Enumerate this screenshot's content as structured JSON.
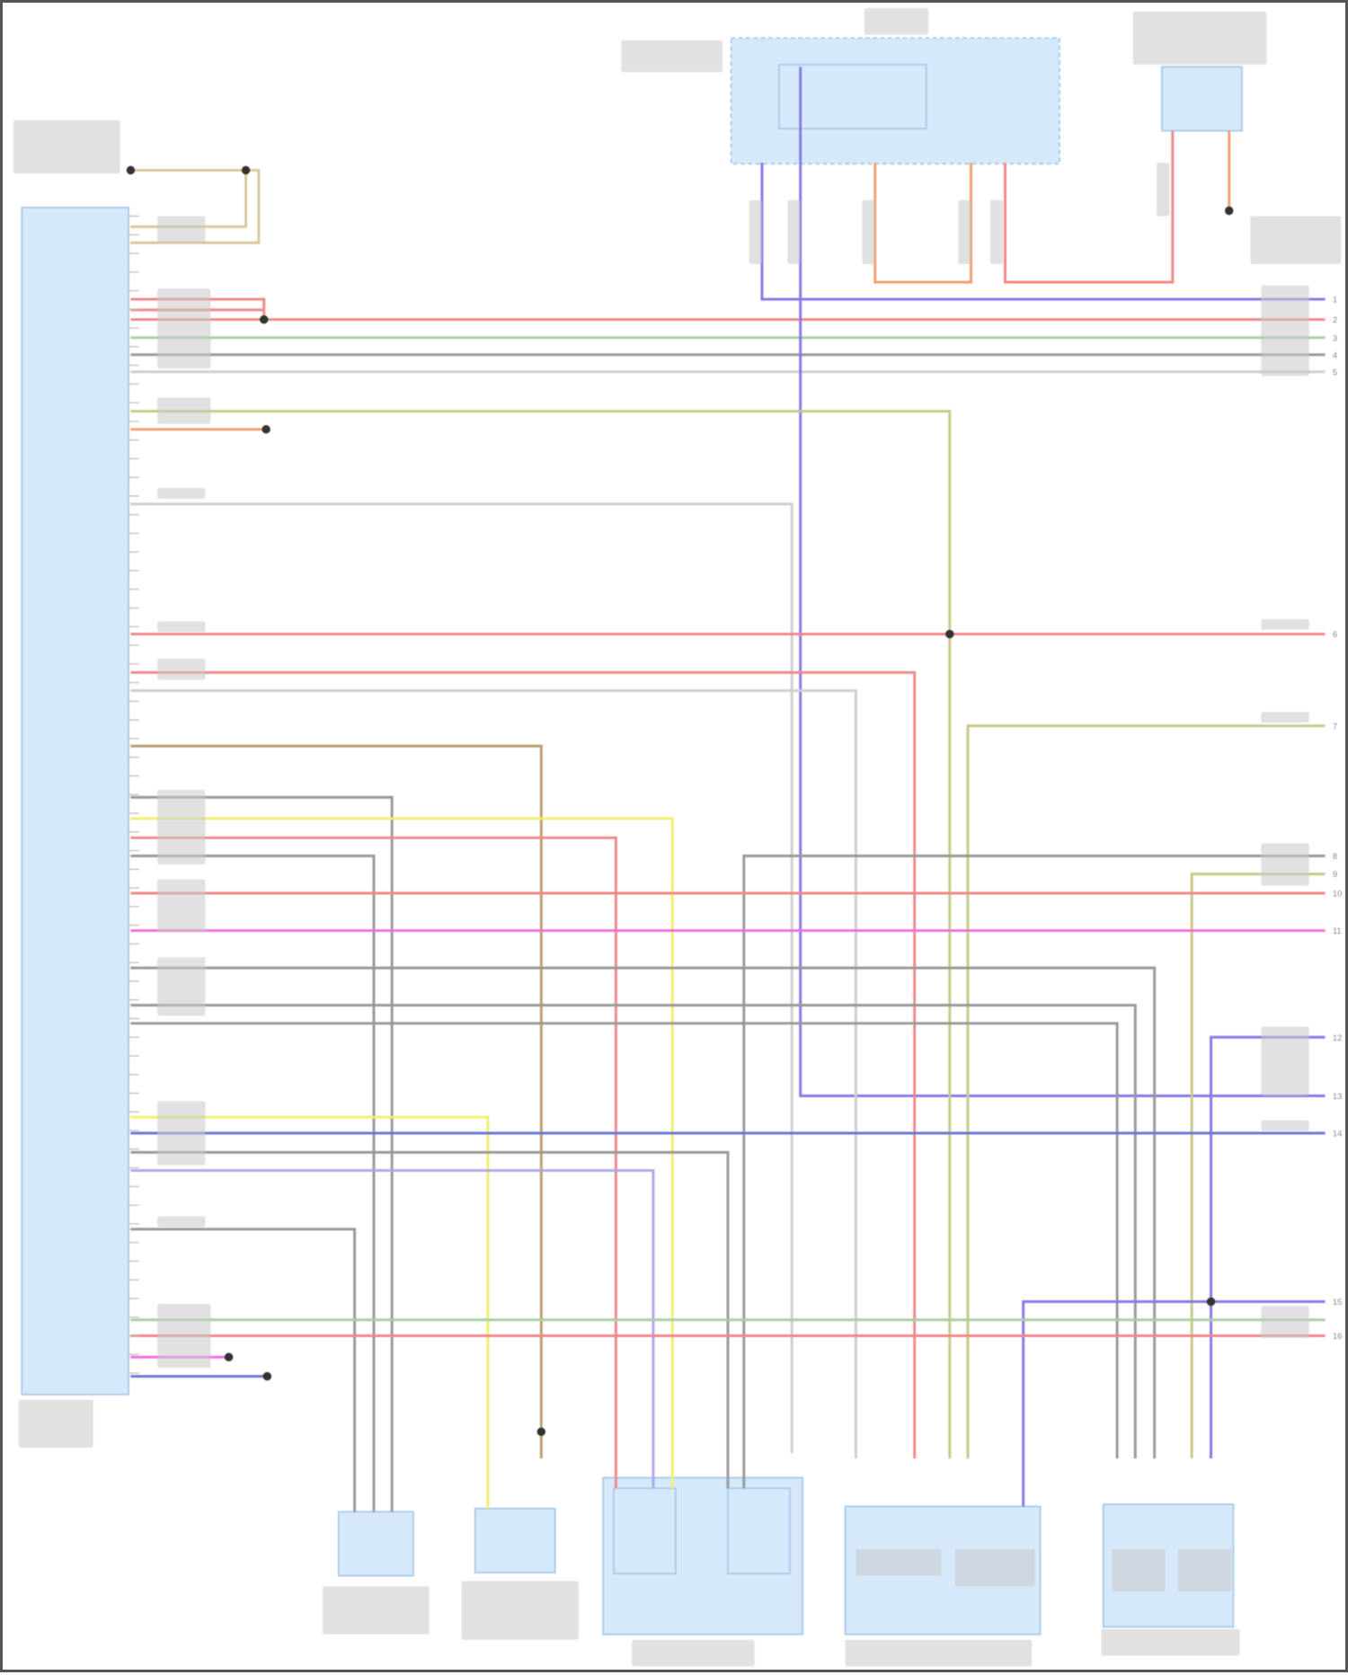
{
  "diagram": {
    "labels_legible": false,
    "colors": {
      "module_fill": "#d6e9fb",
      "module_stroke": "#a9c9e8",
      "red": "#f08a8a",
      "orange": "#f0a070",
      "tan": "#d9c89a",
      "olive": "#c9c98a",
      "green": "#a9d0a9",
      "gray": "#9a9a9a",
      "lightgray": "#cfcfcf",
      "purple": "#8a7ae8",
      "lavender": "#b0a8e8",
      "yellow": "#f0f070",
      "magenta": "#f070e0",
      "blue": "#6a7ad8",
      "brown": "#b8a070",
      "splice": "#333333"
    },
    "right_pin_numbers": [
      "1",
      "2",
      "3",
      "4",
      "5",
      "6",
      "7",
      "8",
      "9",
      "10",
      "11",
      "12",
      "13",
      "14",
      "15",
      "16"
    ]
  }
}
